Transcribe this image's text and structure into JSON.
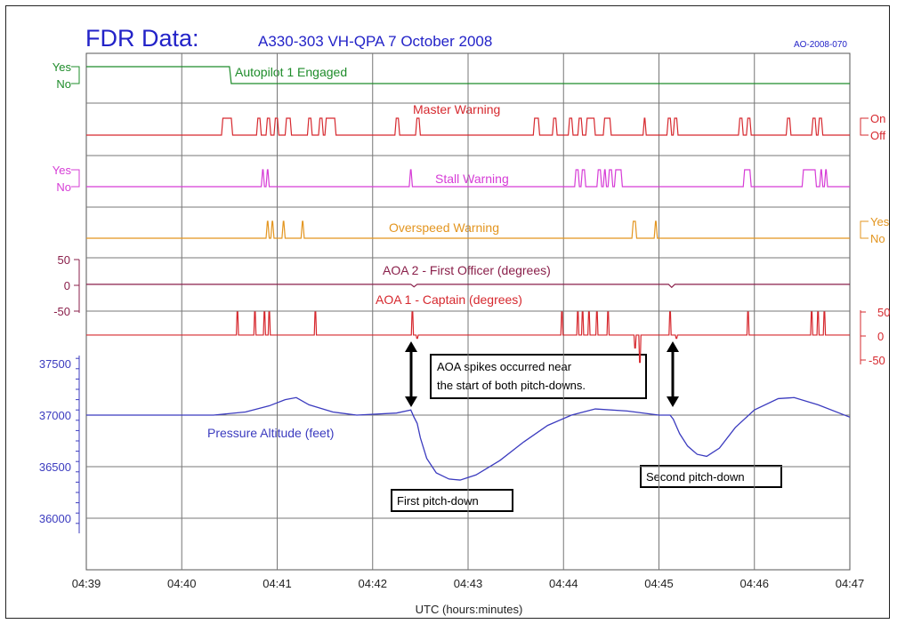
{
  "chart_data": {
    "type": "line",
    "title": "FDR Data:",
    "subtitle": "A330-303  VH-QPA  7 October 2008",
    "report_id": "AO-2008-070",
    "xlabel": "UTC (hours:minutes)",
    "x_ticks": [
      "04:39",
      "04:40",
      "04:41",
      "04:42",
      "04:43",
      "04:44",
      "04:45",
      "04:46",
      "04:47"
    ],
    "colors": {
      "autopilot": "#1e8c2a",
      "master": "#d6282e",
      "stall": "#d63cd6",
      "overspeed": "#e3951f",
      "aoa2": "#8a1f4a",
      "aoa1": "#d6282e",
      "altitude": "#3b3bbf",
      "title": "#2323c8"
    },
    "discrete_series": [
      {
        "name": "Autopilot 1 Engaged",
        "key": "autopilot",
        "labels": [
          "Yes",
          "No"
        ],
        "label_side": "left",
        "high_intervals": [
          [
            "04:39:00",
            "04:40:30"
          ]
        ]
      },
      {
        "name": "Master Warning",
        "key": "master",
        "labels": [
          "On",
          "Off"
        ],
        "label_side": "right",
        "high_intervals": [
          [
            "04:40:25",
            "04:40:32"
          ],
          [
            "04:40:47",
            "04:40:50"
          ],
          [
            "04:40:53",
            "04:40:56"
          ],
          [
            "04:40:58",
            "04:41:01"
          ],
          [
            "04:41:05",
            "04:41:09"
          ],
          [
            "04:41:19",
            "04:41:22"
          ],
          [
            "04:41:26",
            "04:41:29"
          ],
          [
            "04:41:30",
            "04:41:37"
          ],
          [
            "04:42:14",
            "04:42:17"
          ],
          [
            "04:42:27",
            "04:42:30"
          ],
          [
            "04:43:41",
            "04:43:45"
          ],
          [
            "04:43:53",
            "04:43:56"
          ],
          [
            "04:44:03",
            "04:44:06"
          ],
          [
            "04:44:09",
            "04:44:12"
          ],
          [
            "04:44:14",
            "04:44:20"
          ],
          [
            "04:44:25",
            "04:44:30"
          ],
          [
            "04:44:50",
            "04:44:52"
          ],
          [
            "04:45:05",
            "04:45:08"
          ],
          [
            "04:45:09",
            "04:45:12"
          ],
          [
            "04:45:50",
            "04:45:53"
          ],
          [
            "04:45:55",
            "04:45:58"
          ],
          [
            "04:46:20",
            "04:46:23"
          ],
          [
            "04:46:36",
            "04:46:39"
          ],
          [
            "04:46:40",
            "04:46:43"
          ]
        ]
      },
      {
        "name": "Stall Warning",
        "key": "stall",
        "labels": [
          "Yes",
          "No"
        ],
        "label_side": "left",
        "high_intervals": [
          [
            "04:40:50",
            "04:40:52"
          ],
          [
            "04:40:53",
            "04:40:55"
          ],
          [
            "04:42:23",
            "04:42:25"
          ],
          [
            "04:44:07",
            "04:44:10"
          ],
          [
            "04:44:11",
            "04:44:14"
          ],
          [
            "04:44:21",
            "04:44:24"
          ],
          [
            "04:44:25",
            "04:44:27"
          ],
          [
            "04:44:28",
            "04:44:31"
          ],
          [
            "04:44:32",
            "04:44:37"
          ],
          [
            "04:45:53",
            "04:45:58"
          ],
          [
            "04:46:30",
            "04:46:39"
          ],
          [
            "04:46:41",
            "04:46:43"
          ],
          [
            "04:46:44",
            "04:46:46"
          ]
        ]
      },
      {
        "name": "Overspeed Warning",
        "key": "overspeed",
        "labels": [
          "Yes",
          "No"
        ],
        "label_side": "right",
        "high_intervals": [
          [
            "04:40:53",
            "04:40:55"
          ],
          [
            "04:40:56",
            "04:40:58"
          ],
          [
            "04:41:03",
            "04:41:05"
          ],
          [
            "04:41:15",
            "04:41:17"
          ],
          [
            "04:44:43",
            "04:44:46"
          ],
          [
            "04:44:57",
            "04:44:59"
          ]
        ]
      }
    ],
    "aoa2": {
      "name": "AOA 2 - First Officer (degrees)",
      "key": "aoa2",
      "y_ticks": [
        "50",
        "0",
        "-50"
      ],
      "ylim": [
        -50,
        50
      ],
      "baseline": 2,
      "points": [
        [
          "04:39:00",
          2
        ],
        [
          "04:42:24",
          2
        ],
        [
          "04:42:26",
          -3
        ],
        [
          "04:42:28",
          2
        ],
        [
          "04:45:06",
          2
        ],
        [
          "04:45:08",
          -4
        ],
        [
          "04:45:10",
          2
        ],
        [
          "04:47:00",
          2
        ]
      ]
    },
    "aoa1": {
      "name": "AOA 1 - Captain (degrees)",
      "key": "aoa1",
      "y_ticks": [
        "50",
        "0",
        "-50"
      ],
      "ylim": [
        -50,
        50
      ],
      "baseline": 2,
      "spikes": [
        [
          "04:40:35",
          50
        ],
        [
          "04:40:46",
          50
        ],
        [
          "04:40:52",
          50
        ],
        [
          "04:40:55",
          50
        ],
        [
          "04:41:24",
          50
        ],
        [
          "04:42:25",
          50
        ],
        [
          "04:43:59",
          50
        ],
        [
          "04:44:09",
          50
        ],
        [
          "04:44:12",
          50
        ],
        [
          "04:44:16",
          50
        ],
        [
          "04:44:21",
          50
        ],
        [
          "04:44:28",
          50
        ],
        [
          "04:45:07",
          50
        ],
        [
          "04:45:56",
          50
        ],
        [
          "04:46:36",
          50
        ],
        [
          "04:46:40",
          50
        ],
        [
          "04:46:44",
          50
        ]
      ],
      "dips": [
        [
          "04:42:28",
          -5
        ],
        [
          "04:44:45",
          -25
        ],
        [
          "04:44:48",
          -55
        ],
        [
          "04:45:11",
          -5
        ]
      ]
    },
    "altitude": {
      "name": "Pressure Altitude (feet)",
      "key": "altitude",
      "y_ticks": [
        "37500",
        "37000",
        "36500",
        "36000"
      ],
      "ylim": [
        35500,
        37600
      ],
      "points": [
        [
          "04:39:00",
          37000
        ],
        [
          "04:40:20",
          37000
        ],
        [
          "04:40:40",
          37030
        ],
        [
          "04:40:55",
          37090
        ],
        [
          "04:41:05",
          37150
        ],
        [
          "04:41:12",
          37170
        ],
        [
          "04:41:20",
          37100
        ],
        [
          "04:41:35",
          37030
        ],
        [
          "04:41:50",
          37000
        ],
        [
          "04:42:15",
          37020
        ],
        [
          "04:42:24",
          37050
        ],
        [
          "04:42:26",
          36980
        ],
        [
          "04:42:28",
          36920
        ],
        [
          "04:42:30",
          36780
        ],
        [
          "04:42:34",
          36580
        ],
        [
          "04:42:40",
          36440
        ],
        [
          "04:42:48",
          36380
        ],
        [
          "04:42:55",
          36370
        ],
        [
          "04:43:05",
          36420
        ],
        [
          "04:43:20",
          36560
        ],
        [
          "04:43:35",
          36740
        ],
        [
          "04:43:50",
          36900
        ],
        [
          "04:44:05",
          37000
        ],
        [
          "04:44:20",
          37060
        ],
        [
          "04:44:40",
          37040
        ],
        [
          "04:45:00",
          37000
        ],
        [
          "04:45:07",
          37000
        ],
        [
          "04:45:09",
          36960
        ],
        [
          "04:45:13",
          36820
        ],
        [
          "04:45:18",
          36700
        ],
        [
          "04:45:24",
          36620
        ],
        [
          "04:45:30",
          36600
        ],
        [
          "04:45:38",
          36680
        ],
        [
          "04:45:48",
          36880
        ],
        [
          "04:46:00",
          37050
        ],
        [
          "04:46:15",
          37160
        ],
        [
          "04:46:25",
          37170
        ],
        [
          "04:46:40",
          37100
        ],
        [
          "04:47:00",
          36980
        ]
      ]
    },
    "annotations": {
      "aoa_spikes": "AOA spikes occurred near the start of both pitch-downs.",
      "aoa_spikes_line1": "AOA spikes occurred near",
      "aoa_spikes_line2": "the start of both pitch-downs.",
      "first_pitch_down": "First pitch-down",
      "second_pitch_down": "Second pitch-down"
    },
    "grid": true
  }
}
